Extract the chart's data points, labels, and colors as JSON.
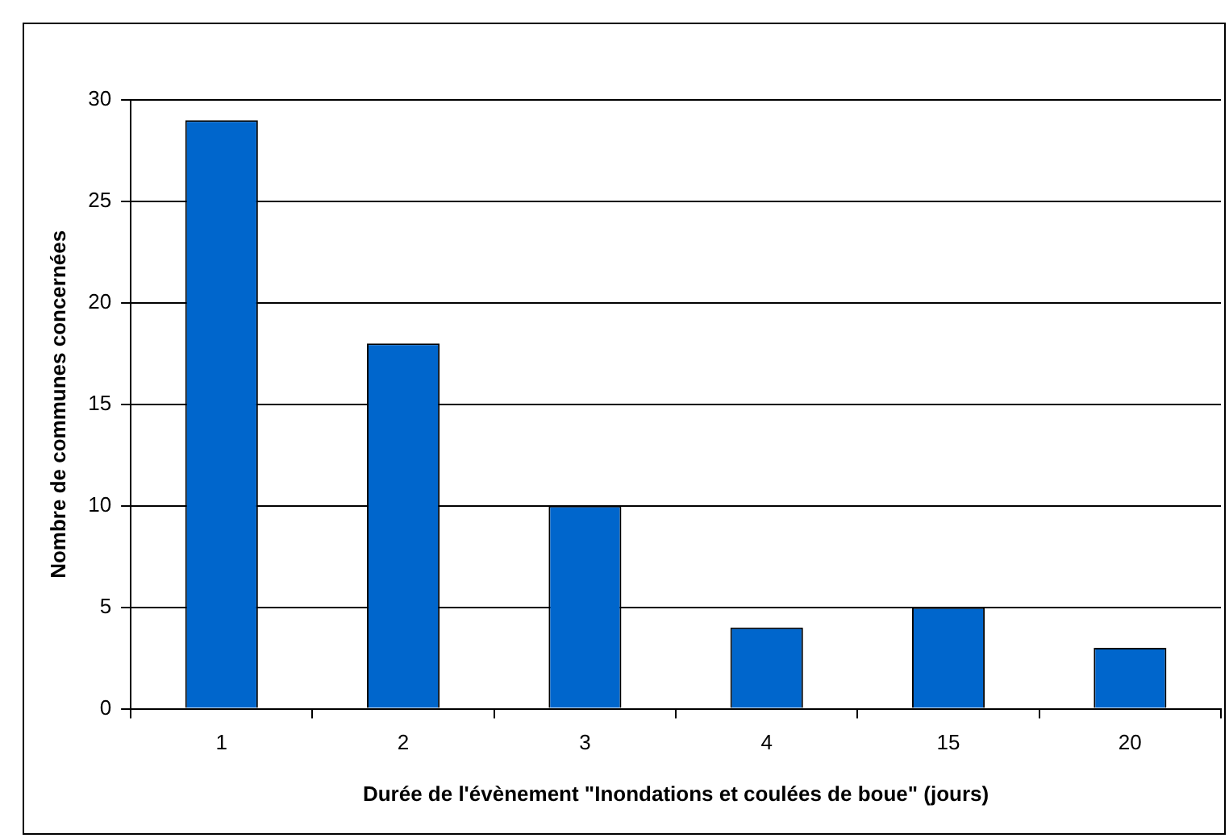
{
  "chart_data": {
    "type": "bar",
    "xlabel": "Durée de l'évènement \"Inondations et coulées de boue\" (jours)",
    "ylabel": "Nombre de communes concernées",
    "categories": [
      "1",
      "2",
      "3",
      "4",
      "15",
      "20"
    ],
    "values": [
      29,
      18,
      10,
      4,
      5,
      3
    ],
    "color": "#0066cc",
    "ylim": [
      0,
      30
    ],
    "yticks": [
      0,
      5,
      10,
      15,
      20,
      25,
      30
    ],
    "grid": "y",
    "legend": false
  }
}
